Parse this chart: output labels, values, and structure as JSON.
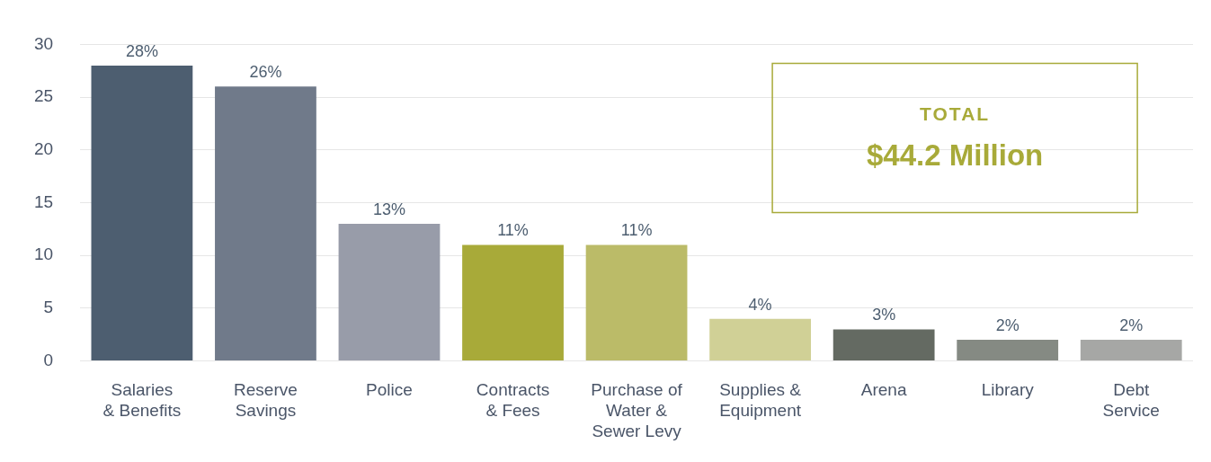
{
  "chart_data": {
    "type": "bar",
    "categories": [
      "Salaries\n& Benefits",
      "Reserve\nSavings",
      "Police",
      "Contracts\n& Fees",
      "Purchase of\nWater &\nSewer Levy",
      "Supplies &\nEquipment",
      "Arena",
      "Library",
      "Debt\nService"
    ],
    "values": [
      28,
      26,
      13,
      11,
      11,
      4,
      3,
      2,
      2
    ],
    "colors": [
      "#4d5e70",
      "#707a8a",
      "#989ca9",
      "#a8aa39",
      "#bbbb68",
      "#d0d096",
      "#646a62",
      "#858a83",
      "#a6a7a5"
    ],
    "value_labels": [
      "28%",
      "26%",
      "13%",
      "11%",
      "11%",
      "4%",
      "3%",
      "2%",
      "2%"
    ],
    "ylim": [
      0,
      30
    ],
    "yticks": [
      0,
      5,
      10,
      15,
      20,
      25,
      30
    ],
    "grid": "y",
    "legend": false,
    "annotations": [
      "TOTAL",
      "$44.2 Million"
    ]
  }
}
